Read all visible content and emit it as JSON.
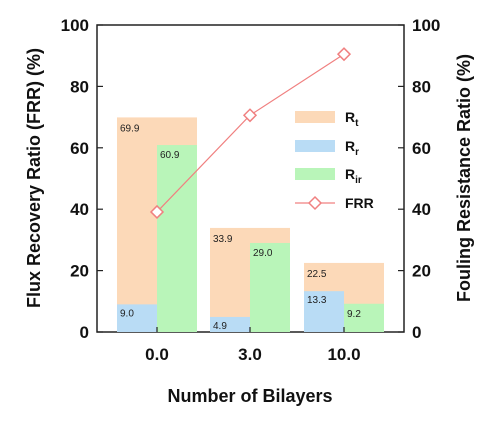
{
  "chart_data": {
    "type": "bar",
    "xlabel": "Number of Bilayers",
    "ylabel_left": "Flux Recovery Ratio (FRR) (%)",
    "ylabel_right": "Fouling Resistance Ratio (%)",
    "ylim": [
      0,
      100
    ],
    "yticks": [
      "0",
      "20",
      "40",
      "60",
      "80",
      "100"
    ],
    "categories": [
      "0.0",
      "3.0",
      "10.0"
    ],
    "series": [
      {
        "name": "Rt",
        "label_main": "R",
        "label_sub": "t",
        "values": [
          69.9,
          33.9,
          22.5
        ],
        "labels": [
          "69.9",
          "33.9",
          "22.5"
        ],
        "color": "#fcd9b8",
        "kind": "bar"
      },
      {
        "name": "Rr",
        "label_main": "R",
        "label_sub": "r",
        "values": [
          9.0,
          4.9,
          13.3
        ],
        "labels": [
          "9.0",
          "4.9",
          "13.3"
        ],
        "color": "#b9dcf5",
        "kind": "bar"
      },
      {
        "name": "Rir",
        "label_main": "R",
        "label_sub": "ir",
        "values": [
          60.9,
          29.0,
          9.2
        ],
        "labels": [
          "60.9",
          "29.0",
          "9.2"
        ],
        "color": "#b9f5b9",
        "kind": "bar"
      },
      {
        "name": "FRR",
        "label_main": "FRR",
        "label_sub": "",
        "values": [
          39.1,
          70.6,
          90.5
        ],
        "color": "#f08080",
        "kind": "line"
      }
    ],
    "grid": false,
    "legend_position": "right"
  }
}
